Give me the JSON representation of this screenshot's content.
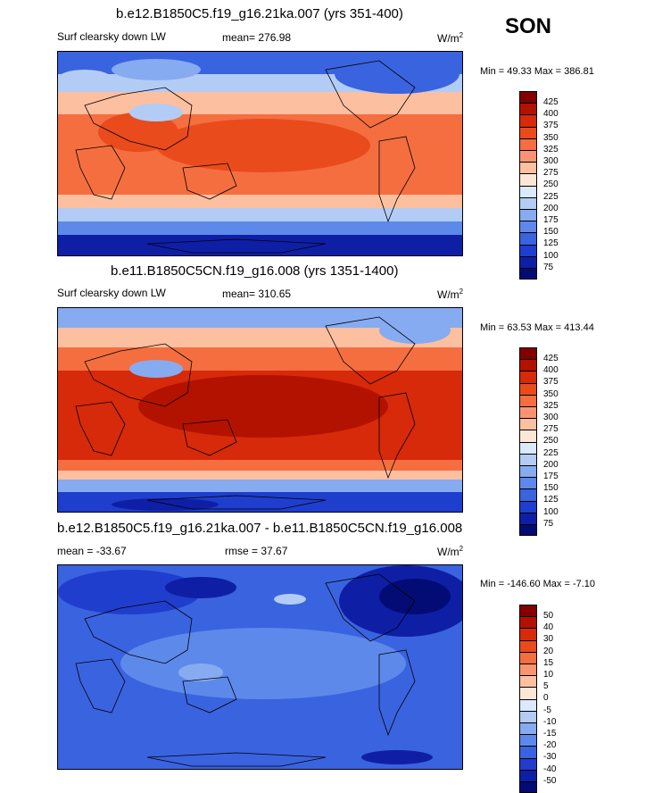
{
  "season": "SON",
  "panels": [
    {
      "title": "b.e12.B1850C5.f19_g16.21ka.007 (yrs 351-400)",
      "variable": "Surf clearsky down LW",
      "mean": "mean= 276.98",
      "units": "W/m",
      "units_sup": "2",
      "minmax": "Min =  49.33 Max = 386.81",
      "colorbar_labels": [
        "425",
        "400",
        "375",
        "350",
        "325",
        "300",
        "275",
        "250",
        "225",
        "200",
        "175",
        "150",
        "125",
        "100",
        "75"
      ]
    },
    {
      "title": "b.e11.B1850C5CN.f19_g16.008 (yrs 1351-1400)",
      "variable": "Surf clearsky down LW",
      "mean": "mean= 310.65",
      "units": "W/m",
      "units_sup": "2",
      "minmax": "Min =  63.53 Max = 413.44",
      "colorbar_labels": [
        "425",
        "400",
        "375",
        "350",
        "325",
        "300",
        "275",
        "250",
        "225",
        "200",
        "175",
        "150",
        "125",
        "100",
        "75"
      ]
    },
    {
      "title": "b.e12.B1850C5.f19_g16.21ka.007 - b.e11.B1850C5CN.f19_g16.008",
      "variable": "mean = -33.67",
      "mean": "rmse =  37.67",
      "units": "W/m",
      "units_sup": "2",
      "minmax": "Min = -146.60 Max =  -7.10",
      "colorbar_labels": [
        "50",
        "40",
        "30",
        "20",
        "15",
        "10",
        "5",
        "0",
        "-5",
        "-10",
        "-15",
        "-20",
        "-30",
        "-40",
        "-50"
      ]
    }
  ],
  "colors": {
    "scale": [
      "#820000",
      "#b31200",
      "#d62a0a",
      "#ea4b1c",
      "#f46e40",
      "#fa9470",
      "#fcbfa0",
      "#fde6d6",
      "#dce8fb",
      "#b2ccf5",
      "#86abf0",
      "#5d89eb",
      "#3a63df",
      "#1f3ecd",
      "#0e1fa6",
      "#020c74"
    ]
  }
}
